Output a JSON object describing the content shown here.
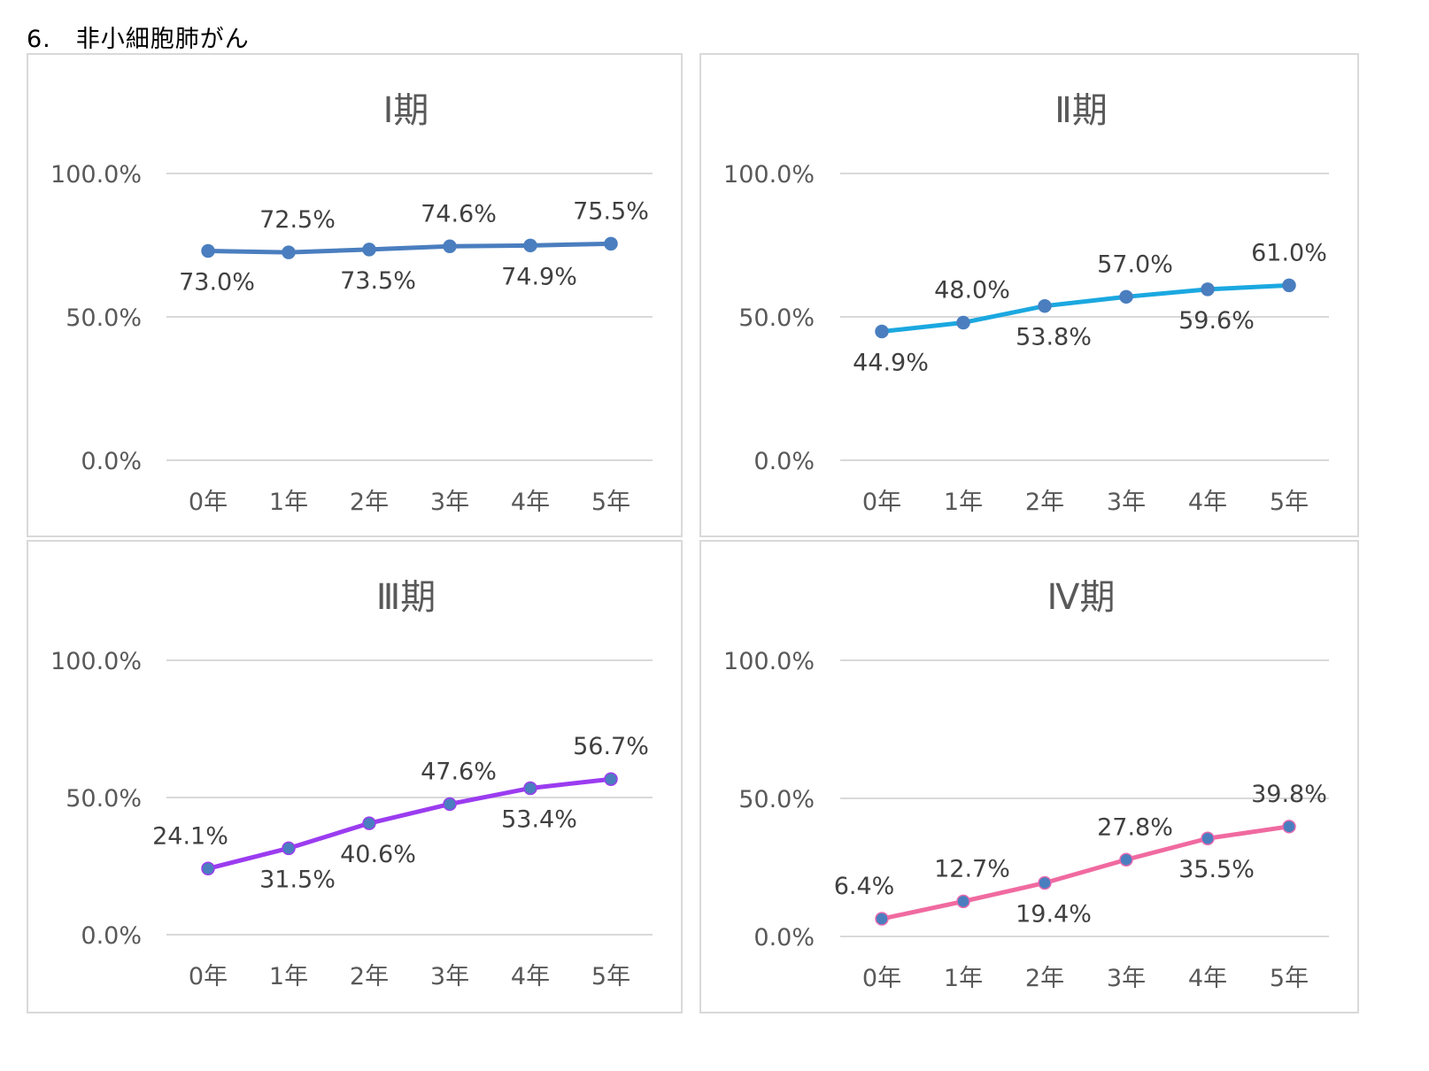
{
  "page_title": "6.　非小細胞肺がん",
  "chart_data": [
    {
      "type": "line",
      "title": "Ⅰ期",
      "categories": [
        "0年",
        "1年",
        "2年",
        "3年",
        "4年",
        "5年"
      ],
      "values": [
        73.0,
        72.5,
        73.5,
        74.6,
        74.9,
        75.5
      ],
      "data_labels": [
        "73.0%",
        "72.5%",
        "73.5%",
        "74.6%",
        "74.9%",
        "75.5%"
      ],
      "label_side": [
        "below",
        "above",
        "below",
        "above",
        "below",
        "above"
      ],
      "yticks": [
        "0.0%",
        "50.0%",
        "100.0%"
      ],
      "ylim": [
        0,
        100
      ],
      "color": "#4a7ebf",
      "marker_edge": "#4a7ebf"
    },
    {
      "type": "line",
      "title": "Ⅱ期",
      "categories": [
        "0年",
        "1年",
        "2年",
        "3年",
        "4年",
        "5年"
      ],
      "values": [
        44.9,
        48.0,
        53.8,
        57.0,
        59.6,
        61.0
      ],
      "data_labels": [
        "44.9%",
        "48.0%",
        "53.8%",
        "57.0%",
        "59.6%",
        "61.0%"
      ],
      "label_side": [
        "below",
        "above",
        "below",
        "above",
        "below",
        "above"
      ],
      "yticks": [
        "0.0%",
        "50.0%",
        "100.0%"
      ],
      "ylim": [
        0,
        100
      ],
      "color": "#1ba8e0",
      "marker_edge": "#4a7ebf"
    },
    {
      "type": "line",
      "title": "Ⅲ期",
      "categories": [
        "0年",
        "1年",
        "2年",
        "3年",
        "4年",
        "5年"
      ],
      "values": [
        24.1,
        31.5,
        40.6,
        47.6,
        53.4,
        56.7
      ],
      "data_labels": [
        "24.1%",
        "31.5%",
        "40.6%",
        "47.6%",
        "53.4%",
        "56.7%"
      ],
      "label_side": [
        "above",
        "below",
        "below",
        "above",
        "below",
        "above"
      ],
      "yticks": [
        "0.0%",
        "50.0%",
        "100.0%"
      ],
      "ylim": [
        0,
        100
      ],
      "color": "#9b3cf0",
      "marker_edge": "#9b3cf0"
    },
    {
      "type": "line",
      "title": "Ⅳ期",
      "categories": [
        "0年",
        "1年",
        "2年",
        "3年",
        "4年",
        "5年"
      ],
      "values": [
        6.4,
        12.7,
        19.4,
        27.8,
        35.5,
        39.8
      ],
      "data_labels": [
        "6.4%",
        "12.7%",
        "19.4%",
        "27.8%",
        "35.5%",
        "39.8%"
      ],
      "label_side": [
        "above",
        "above",
        "below",
        "above",
        "below",
        "above"
      ],
      "yticks": [
        "0.0%",
        "50.0%",
        "100.0%"
      ],
      "ylim": [
        0,
        100
      ],
      "color": "#f06aa0",
      "marker_edge": "#e86ab0"
    }
  ]
}
